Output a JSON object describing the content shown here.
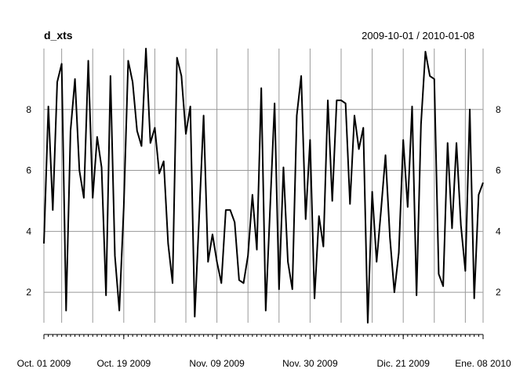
{
  "chart_data": {
    "type": "line",
    "title": "d_xts",
    "date_range": "2009-10-01 / 2010-01-08",
    "x": [
      "2009-10-01",
      "2009-10-02",
      "2009-10-03",
      "2009-10-04",
      "2009-10-05",
      "2009-10-06",
      "2009-10-07",
      "2009-10-08",
      "2009-10-09",
      "2009-10-10",
      "2009-10-11",
      "2009-10-12",
      "2009-10-13",
      "2009-10-14",
      "2009-10-15",
      "2009-10-16",
      "2009-10-17",
      "2009-10-18",
      "2009-10-19",
      "2009-10-20",
      "2009-10-21",
      "2009-10-22",
      "2009-10-23",
      "2009-10-24",
      "2009-10-25",
      "2009-10-26",
      "2009-10-27",
      "2009-10-28",
      "2009-10-29",
      "2009-10-30",
      "2009-10-31",
      "2009-11-01",
      "2009-11-02",
      "2009-11-03",
      "2009-11-04",
      "2009-11-05",
      "2009-11-06",
      "2009-11-07",
      "2009-11-08",
      "2009-11-09",
      "2009-11-10",
      "2009-11-11",
      "2009-11-12",
      "2009-11-13",
      "2009-11-14",
      "2009-11-15",
      "2009-11-16",
      "2009-11-17",
      "2009-11-18",
      "2009-11-19",
      "2009-11-20",
      "2009-11-21",
      "2009-11-22",
      "2009-11-23",
      "2009-11-24",
      "2009-11-25",
      "2009-11-26",
      "2009-11-27",
      "2009-11-28",
      "2009-11-29",
      "2009-11-30",
      "2009-12-01",
      "2009-12-02",
      "2009-12-03",
      "2009-12-04",
      "2009-12-05",
      "2009-12-06",
      "2009-12-07",
      "2009-12-08",
      "2009-12-09",
      "2009-12-10",
      "2009-12-11",
      "2009-12-12",
      "2009-12-13",
      "2009-12-14",
      "2009-12-15",
      "2009-12-16",
      "2009-12-17",
      "2009-12-18",
      "2009-12-19",
      "2009-12-20",
      "2009-12-21",
      "2009-12-22",
      "2009-12-23",
      "2009-12-24",
      "2009-12-25",
      "2009-12-26",
      "2009-12-27",
      "2009-12-28",
      "2009-12-29",
      "2009-12-30",
      "2009-12-31",
      "2010-01-01",
      "2010-01-02",
      "2010-01-03",
      "2010-01-04",
      "2010-01-05",
      "2010-01-06",
      "2010-01-07",
      "2010-01-08"
    ],
    "values": [
      3.6,
      8.1,
      4.7,
      8.9,
      9.5,
      1.4,
      7.3,
      9.0,
      6.0,
      5.1,
      9.6,
      5.1,
      7.1,
      6.1,
      1.9,
      9.1,
      3.2,
      1.4,
      4.8,
      9.6,
      8.9,
      7.3,
      6.8,
      10.0,
      6.9,
      7.4,
      5.9,
      6.3,
      3.6,
      2.3,
      9.7,
      9.1,
      7.2,
      8.1,
      1.2,
      4.5,
      7.8,
      3.0,
      3.9,
      3.0,
      2.3,
      4.7,
      4.7,
      4.3,
      2.4,
      2.3,
      3.2,
      5.2,
      3.4,
      8.7,
      1.4,
      4.8,
      8.2,
      2.1,
      6.1,
      3.0,
      2.1,
      7.8,
      9.1,
      4.4,
      7.0,
      1.8,
      4.5,
      3.5,
      8.3,
      5.0,
      8.3,
      8.3,
      8.2,
      4.9,
      7.8,
      6.7,
      7.4,
      1.0,
      5.3,
      3.0,
      4.7,
      6.5,
      3.8,
      2.0,
      3.3,
      7.0,
      4.8,
      8.1,
      1.9,
      7.5,
      9.9,
      9.1,
      9.0,
      2.6,
      2.2,
      6.9,
      4.1,
      6.9,
      4.2,
      2.7,
      8.0,
      1.8,
      5.2,
      5.6
    ],
    "x_tick_labels": [
      "Oct. 01 2009",
      "Oct. 19 2009",
      "Nov. 09 2009",
      "Nov. 30 2009",
      "Dic. 21 2009",
      "Ene. 08 2010"
    ],
    "x_tick_dates": [
      "2009-10-01",
      "2009-10-19",
      "2009-11-09",
      "2009-11-30",
      "2009-12-21",
      "2010-01-08"
    ],
    "y_ticks": [
      2,
      4,
      6,
      8
    ],
    "ylim": [
      1,
      10
    ],
    "xlim": [
      "2009-10-01",
      "2010-01-08"
    ],
    "grid": true,
    "line_color": "#000000",
    "grid_color": "#999999"
  }
}
